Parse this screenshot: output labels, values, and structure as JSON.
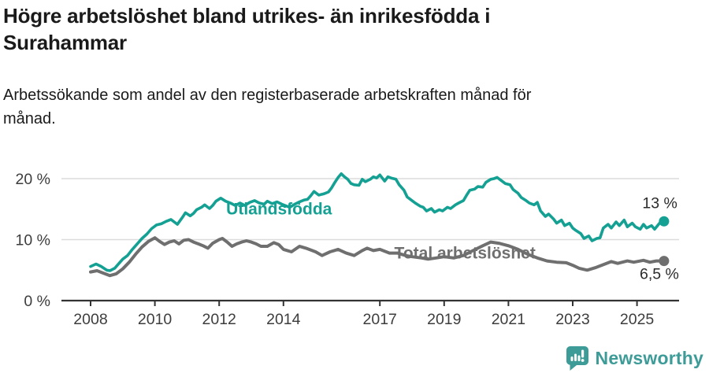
{
  "chart_data": {
    "type": "line",
    "title": "Högre arbetslöshet bland utrikes- än inrikesfödda i Surahammar",
    "subtitle": "Arbetssökande som andel av den registerbaserade arbetskraften månad för månad.",
    "x_unit": "decimal_year",
    "x_range_shown": [
      2008.0,
      2025.84
    ],
    "xticks": [
      2008,
      2010,
      2012,
      2014,
      2017,
      2019,
      2021,
      2023,
      2025
    ],
    "yticks": [
      0,
      10,
      20
    ],
    "ytick_labels": [
      "0 %",
      "10 %",
      "20 %"
    ],
    "ylim": [
      0,
      22
    ],
    "grid": "horizontal",
    "legend": "inline-labels",
    "colors": {
      "grid": "#dcdcdc",
      "axis": "#333333",
      "tick_text": "#3d3d3d",
      "annotation_text": "#2b2b2b"
    },
    "series": [
      {
        "name": "Utlandsfödda",
        "color": "#14a093",
        "last_value": 13.0,
        "end_value_label": "13 %",
        "label_at": {
          "year": 2012.22,
          "value": 14.1
        },
        "end_label_offset": [
          17,
          -17
        ],
        "points": [
          [
            2008.0,
            5.6
          ],
          [
            2008.17,
            6.0
          ],
          [
            2008.33,
            5.6
          ],
          [
            2008.5,
            5.0
          ],
          [
            2008.6,
            4.9
          ],
          [
            2008.75,
            5.3
          ],
          [
            2008.9,
            6.2
          ],
          [
            2009.0,
            6.8
          ],
          [
            2009.15,
            7.4
          ],
          [
            2009.3,
            8.4
          ],
          [
            2009.45,
            9.3
          ],
          [
            2009.6,
            10.2
          ],
          [
            2009.75,
            10.9
          ],
          [
            2009.9,
            11.8
          ],
          [
            2010.05,
            12.4
          ],
          [
            2010.2,
            12.6
          ],
          [
            2010.35,
            13.0
          ],
          [
            2010.5,
            13.3
          ],
          [
            2010.6,
            12.9
          ],
          [
            2010.7,
            12.5
          ],
          [
            2010.85,
            13.6
          ],
          [
            2010.95,
            14.4
          ],
          [
            2011.1,
            13.9
          ],
          [
            2011.2,
            14.3
          ],
          [
            2011.3,
            14.9
          ],
          [
            2011.45,
            15.3
          ],
          [
            2011.55,
            15.7
          ],
          [
            2011.7,
            15.1
          ],
          [
            2011.8,
            15.6
          ],
          [
            2011.9,
            16.3
          ],
          [
            2012.05,
            16.8
          ],
          [
            2012.2,
            16.3
          ],
          [
            2012.35,
            16.0
          ],
          [
            2012.5,
            15.6
          ],
          [
            2012.65,
            16.0
          ],
          [
            2012.8,
            15.6
          ],
          [
            2012.95,
            16.1
          ],
          [
            2013.1,
            16.4
          ],
          [
            2013.25,
            16.0
          ],
          [
            2013.4,
            15.8
          ],
          [
            2013.5,
            16.3
          ],
          [
            2013.65,
            15.9
          ],
          [
            2013.8,
            16.2
          ],
          [
            2013.95,
            15.8
          ],
          [
            2014.1,
            15.5
          ],
          [
            2014.2,
            15.3
          ],
          [
            2014.35,
            15.8
          ],
          [
            2014.5,
            16.2
          ],
          [
            2014.65,
            16.5
          ],
          [
            2014.75,
            16.6
          ],
          [
            2014.85,
            17.2
          ],
          [
            2014.95,
            17.9
          ],
          [
            2015.1,
            17.3
          ],
          [
            2015.25,
            17.5
          ],
          [
            2015.4,
            17.8
          ],
          [
            2015.5,
            18.5
          ],
          [
            2015.6,
            19.4
          ],
          [
            2015.7,
            20.2
          ],
          [
            2015.8,
            20.8
          ],
          [
            2015.9,
            20.3
          ],
          [
            2016.0,
            19.9
          ],
          [
            2016.1,
            19.2
          ],
          [
            2016.2,
            19.0
          ],
          [
            2016.35,
            18.9
          ],
          [
            2016.45,
            19.9
          ],
          [
            2016.55,
            19.5
          ],
          [
            2016.7,
            19.9
          ],
          [
            2016.8,
            20.3
          ],
          [
            2016.9,
            20.1
          ],
          [
            2017.0,
            20.6
          ],
          [
            2017.15,
            19.6
          ],
          [
            2017.25,
            20.3
          ],
          [
            2017.35,
            20.1
          ],
          [
            2017.5,
            19.9
          ],
          [
            2017.6,
            19.0
          ],
          [
            2017.75,
            18.1
          ],
          [
            2017.85,
            17.0
          ],
          [
            2018.0,
            16.4
          ],
          [
            2018.1,
            16.0
          ],
          [
            2018.25,
            15.5
          ],
          [
            2018.35,
            15.3
          ],
          [
            2018.45,
            14.7
          ],
          [
            2018.6,
            15.1
          ],
          [
            2018.7,
            14.5
          ],
          [
            2018.85,
            14.9
          ],
          [
            2018.95,
            14.7
          ],
          [
            2019.1,
            15.3
          ],
          [
            2019.2,
            15.1
          ],
          [
            2019.35,
            15.7
          ],
          [
            2019.45,
            16.0
          ],
          [
            2019.6,
            16.4
          ],
          [
            2019.7,
            17.3
          ],
          [
            2019.8,
            18.1
          ],
          [
            2019.95,
            18.3
          ],
          [
            2020.05,
            18.7
          ],
          [
            2020.2,
            18.6
          ],
          [
            2020.3,
            19.4
          ],
          [
            2020.45,
            19.9
          ],
          [
            2020.55,
            20.0
          ],
          [
            2020.65,
            20.2
          ],
          [
            2020.8,
            19.6
          ],
          [
            2020.9,
            19.2
          ],
          [
            2021.05,
            19.0
          ],
          [
            2021.15,
            18.2
          ],
          [
            2021.3,
            17.6
          ],
          [
            2021.4,
            16.9
          ],
          [
            2021.55,
            16.4
          ],
          [
            2021.65,
            16.0
          ],
          [
            2021.8,
            15.7
          ],
          [
            2021.9,
            16.1
          ],
          [
            2022.0,
            14.7
          ],
          [
            2022.15,
            13.8
          ],
          [
            2022.25,
            14.2
          ],
          [
            2022.4,
            13.4
          ],
          [
            2022.5,
            12.7
          ],
          [
            2022.65,
            13.2
          ],
          [
            2022.75,
            12.3
          ],
          [
            2022.9,
            12.7
          ],
          [
            2023.0,
            11.9
          ],
          [
            2023.1,
            11.5
          ],
          [
            2023.25,
            11.0
          ],
          [
            2023.35,
            10.2
          ],
          [
            2023.5,
            10.6
          ],
          [
            2023.6,
            9.8
          ],
          [
            2023.75,
            10.2
          ],
          [
            2023.85,
            10.3
          ],
          [
            2023.95,
            11.9
          ],
          [
            2024.1,
            12.5
          ],
          [
            2024.2,
            11.9
          ],
          [
            2024.35,
            12.9
          ],
          [
            2024.45,
            12.3
          ],
          [
            2024.6,
            13.2
          ],
          [
            2024.7,
            12.1
          ],
          [
            2024.85,
            12.7
          ],
          [
            2024.95,
            12.1
          ],
          [
            2025.1,
            11.7
          ],
          [
            2025.2,
            12.5
          ],
          [
            2025.3,
            11.9
          ],
          [
            2025.45,
            12.3
          ],
          [
            2025.55,
            11.7
          ],
          [
            2025.7,
            12.7
          ],
          [
            2025.84,
            13.0
          ]
        ]
      },
      {
        "name": "Total arbetslöshet",
        "color": "#6f6f6f",
        "last_value": 6.5,
        "end_value_label": "6,5 %",
        "label_at": {
          "year": 2017.45,
          "value": 6.9
        },
        "end_label_offset": [
          19,
          23
        ],
        "points": [
          [
            2008.0,
            4.7
          ],
          [
            2008.2,
            4.9
          ],
          [
            2008.4,
            4.5
          ],
          [
            2008.6,
            4.1
          ],
          [
            2008.8,
            4.4
          ],
          [
            2009.0,
            5.2
          ],
          [
            2009.2,
            6.3
          ],
          [
            2009.4,
            7.6
          ],
          [
            2009.6,
            8.8
          ],
          [
            2009.8,
            9.7
          ],
          [
            2010.0,
            10.3
          ],
          [
            2010.15,
            9.7
          ],
          [
            2010.3,
            9.2
          ],
          [
            2010.45,
            9.6
          ],
          [
            2010.6,
            9.8
          ],
          [
            2010.75,
            9.3
          ],
          [
            2010.9,
            9.9
          ],
          [
            2011.05,
            10.0
          ],
          [
            2011.2,
            9.6
          ],
          [
            2011.35,
            9.3
          ],
          [
            2011.5,
            9.0
          ],
          [
            2011.65,
            8.6
          ],
          [
            2011.8,
            9.4
          ],
          [
            2012.0,
            10.0
          ],
          [
            2012.1,
            10.2
          ],
          [
            2012.25,
            9.6
          ],
          [
            2012.4,
            8.9
          ],
          [
            2012.55,
            9.3
          ],
          [
            2012.7,
            9.6
          ],
          [
            2012.85,
            9.8
          ],
          [
            2013.0,
            9.6
          ],
          [
            2013.15,
            9.3
          ],
          [
            2013.3,
            8.9
          ],
          [
            2013.5,
            8.9
          ],
          [
            2013.7,
            9.5
          ],
          [
            2013.85,
            9.2
          ],
          [
            2014.0,
            8.4
          ],
          [
            2014.25,
            8.0
          ],
          [
            2014.5,
            8.9
          ],
          [
            2014.7,
            8.6
          ],
          [
            2015.0,
            8.0
          ],
          [
            2015.2,
            7.4
          ],
          [
            2015.45,
            8.0
          ],
          [
            2015.7,
            8.4
          ],
          [
            2015.95,
            7.8
          ],
          [
            2016.2,
            7.4
          ],
          [
            2016.45,
            8.2
          ],
          [
            2016.6,
            8.6
          ],
          [
            2016.8,
            8.2
          ],
          [
            2017.0,
            8.4
          ],
          [
            2017.3,
            7.8
          ],
          [
            2017.55,
            7.8
          ],
          [
            2017.8,
            7.4
          ],
          [
            2018.0,
            7.2
          ],
          [
            2018.3,
            7.0
          ],
          [
            2018.5,
            6.8
          ],
          [
            2018.75,
            7.0
          ],
          [
            2019.0,
            7.2
          ],
          [
            2019.3,
            7.0
          ],
          [
            2019.6,
            7.4
          ],
          [
            2019.9,
            8.2
          ],
          [
            2020.2,
            9.0
          ],
          [
            2020.45,
            9.6
          ],
          [
            2020.7,
            9.4
          ],
          [
            2021.0,
            9.0
          ],
          [
            2021.3,
            8.4
          ],
          [
            2021.6,
            7.6
          ],
          [
            2021.9,
            7.0
          ],
          [
            2022.2,
            6.5
          ],
          [
            2022.5,
            6.3
          ],
          [
            2022.8,
            6.2
          ],
          [
            2023.0,
            5.8
          ],
          [
            2023.2,
            5.3
          ],
          [
            2023.45,
            5.0
          ],
          [
            2023.7,
            5.4
          ],
          [
            2023.9,
            5.8
          ],
          [
            2024.2,
            6.4
          ],
          [
            2024.4,
            6.1
          ],
          [
            2024.7,
            6.5
          ],
          [
            2024.9,
            6.3
          ],
          [
            2025.2,
            6.6
          ],
          [
            2025.4,
            6.3
          ],
          [
            2025.6,
            6.5
          ],
          [
            2025.84,
            6.5
          ]
        ]
      }
    ]
  },
  "footer": {
    "brand": "Newsworthy",
    "brand_color": "#3d9b98",
    "icon": "bar-chart-speech-bubble-icon"
  }
}
